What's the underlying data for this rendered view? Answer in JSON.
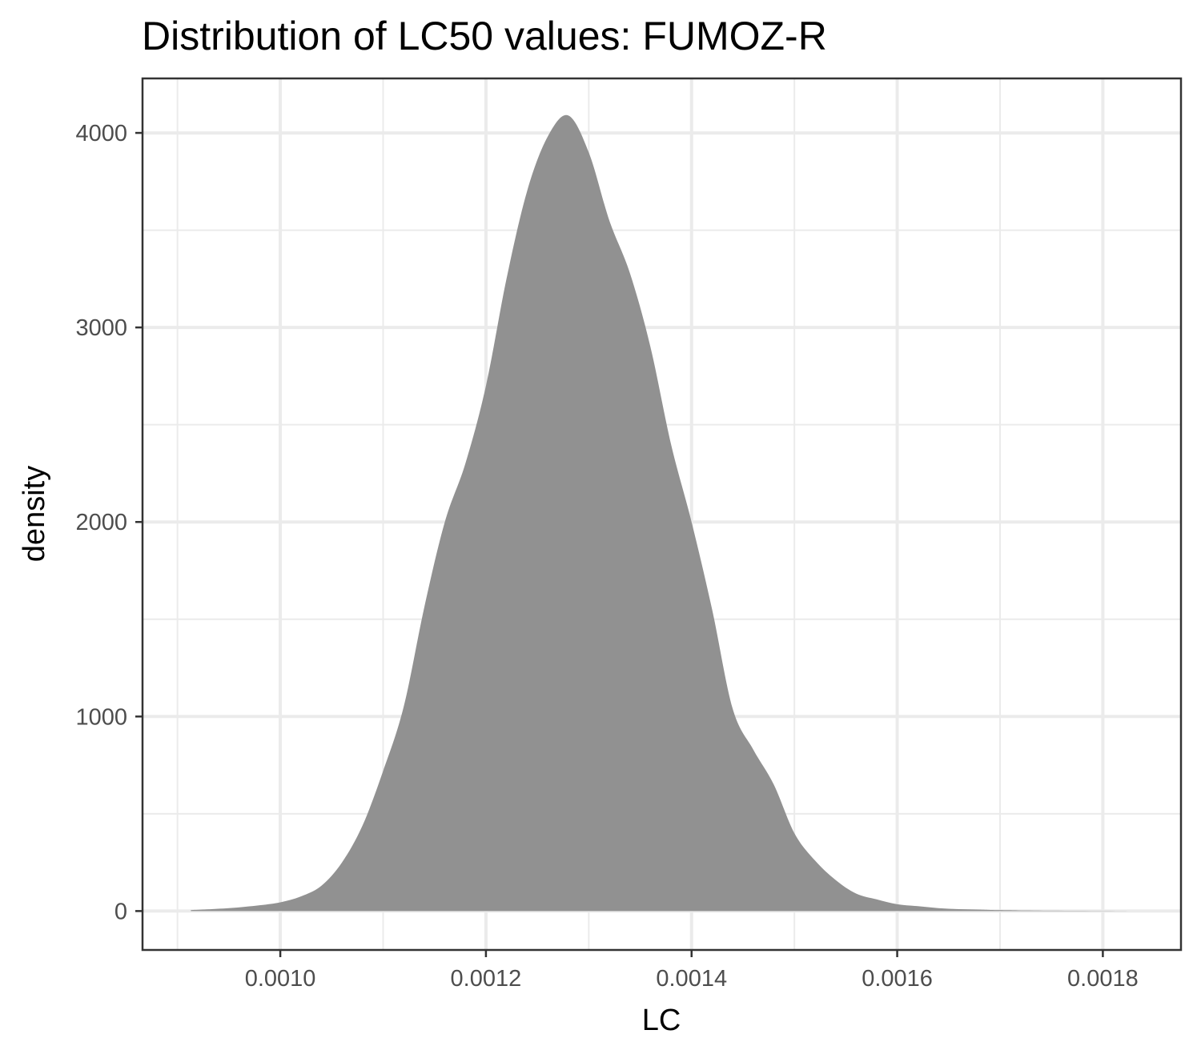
{
  "chart_data": {
    "type": "area",
    "title": "Distribution of LC50 values: FUMOZ-R",
    "xlabel": "LC",
    "ylabel": "density",
    "xlim": [
      0.000866,
      0.001876
    ],
    "ylim": [
      -200,
      4280
    ],
    "x_ticks": [
      0.001,
      0.0012,
      0.0014,
      0.0016,
      0.0018
    ],
    "x_tick_labels": [
      "0.0010",
      "0.0012",
      "0.0014",
      "0.0016",
      "0.0018"
    ],
    "x_minor_ticks": [
      0.0009,
      0.0011,
      0.0013,
      0.0015,
      0.0017
    ],
    "y_ticks": [
      0,
      1000,
      2000,
      3000,
      4000
    ],
    "y_tick_labels": [
      "0",
      "1000",
      "2000",
      "3000",
      "4000"
    ],
    "y_minor_ticks": [
      500,
      1500,
      2500,
      3500
    ],
    "grid": true,
    "legend": "none",
    "fill_color": "#8f8f8f",
    "panel_border_color": "#333333",
    "grid_color": "#ebebeb",
    "series": [
      {
        "x": [
          0.000913,
          0.00095,
          0.00098,
          0.001,
          0.00102,
          0.00104,
          0.00106,
          0.00108,
          0.0011,
          0.00112,
          0.00114,
          0.00116,
          0.00118,
          0.0012,
          0.00122,
          0.00124,
          0.00126,
          0.00128,
          0.0013,
          0.00132,
          0.00134,
          0.00136,
          0.00138,
          0.0014,
          0.00142,
          0.00144,
          0.00146,
          0.00148,
          0.0015,
          0.00152,
          0.00154,
          0.00156,
          0.00158,
          0.0016,
          0.00162,
          0.00164,
          0.00166,
          0.00168,
          0.0017,
          0.00175,
          0.0018,
          0.001835
        ],
        "values": [
          5,
          15,
          30,
          45,
          75,
          130,
          250,
          440,
          720,
          1050,
          1560,
          2000,
          2300,
          2700,
          3250,
          3700,
          3980,
          4090,
          3900,
          3550,
          3280,
          2900,
          2400,
          2000,
          1550,
          1040,
          830,
          650,
          400,
          260,
          160,
          90,
          60,
          35,
          25,
          15,
          10,
          8,
          5,
          2,
          1,
          0
        ]
      }
    ]
  }
}
